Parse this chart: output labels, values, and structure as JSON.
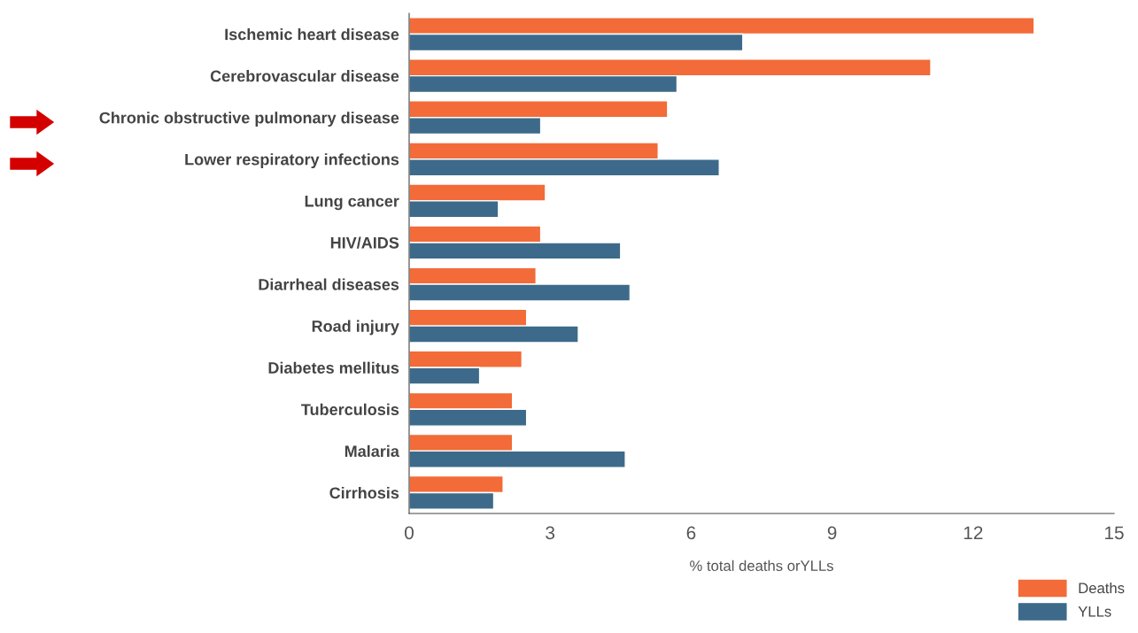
{
  "chart_data": {
    "type": "bar",
    "orientation": "horizontal",
    "xlabel": "% total deaths orYLLs",
    "categories": [
      "Ischemic heart disease",
      "Cerebrovascular disease",
      "Chronic obstructive pulmonary disease",
      "Lower respiratory infections",
      "Lung cancer",
      "HIV/AIDS",
      "Diarrheal diseases",
      "Road injury",
      "Diabetes mellitus",
      "Tuberculosis",
      "Malaria",
      "Cirrhosis"
    ],
    "series": [
      {
        "name": "Deaths",
        "color": "#f26b38",
        "values": [
          13.3,
          11.1,
          5.5,
          5.3,
          2.9,
          2.8,
          2.7,
          2.5,
          2.4,
          2.2,
          2.2,
          2.0
        ]
      },
      {
        "name": "YLLs",
        "color": "#3d6a8a",
        "values": [
          7.1,
          5.7,
          2.8,
          6.6,
          1.9,
          4.5,
          4.7,
          3.6,
          1.5,
          2.5,
          4.6,
          1.8
        ]
      }
    ],
    "xlim": [
      0,
      15
    ],
    "xticks": [
      0,
      3,
      6,
      9,
      12,
      15
    ],
    "grid": false,
    "legend": "bottom right"
  }
}
